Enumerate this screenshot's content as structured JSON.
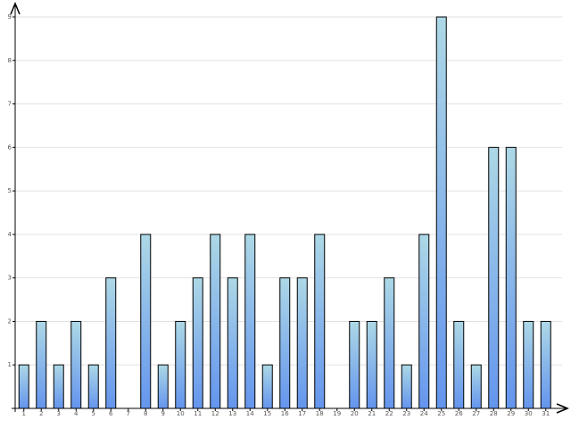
{
  "chart_data": {
    "type": "bar",
    "categories": [
      "1",
      "2",
      "3",
      "4",
      "5",
      "6",
      "7",
      "8",
      "9",
      "10",
      "11",
      "12",
      "13",
      "14",
      "15",
      "16",
      "17",
      "18",
      "19",
      "20",
      "21",
      "22",
      "23",
      "24",
      "25",
      "26",
      "27",
      "28",
      "29",
      "30",
      "31"
    ],
    "values": [
      1,
      2,
      1,
      2,
      1,
      3,
      0,
      4,
      1,
      2,
      3,
      4,
      3,
      4,
      1,
      3,
      3,
      4,
      0,
      2,
      2,
      3,
      1,
      4,
      9,
      2,
      1,
      6,
      6,
      2,
      2
    ],
    "colors": [
      "#add8e6",
      "#6495ed"
    ],
    "ylim": [
      0,
      9
    ],
    "yticks": [
      1,
      2,
      3,
      4,
      5,
      6,
      7,
      8,
      9
    ],
    "grid": true
  }
}
